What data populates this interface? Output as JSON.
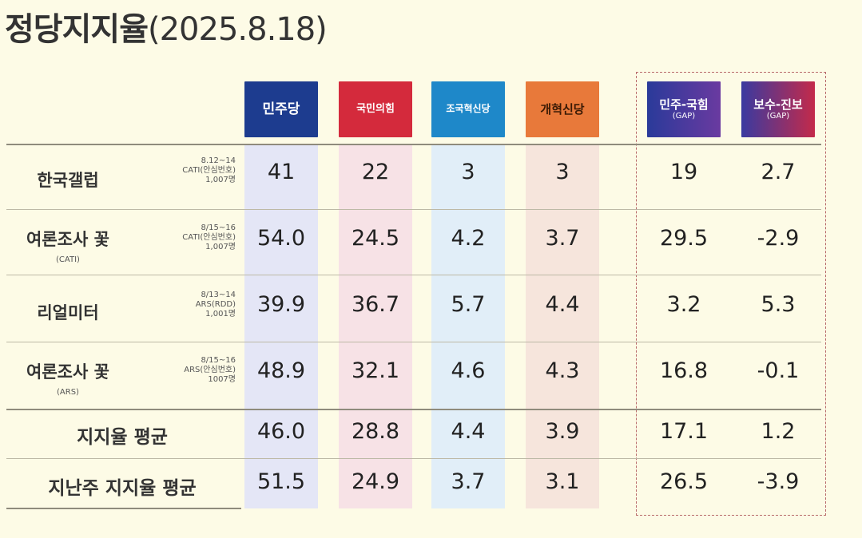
{
  "title": "정당지지율",
  "date": "(2025.8.18)",
  "colors": {
    "democratic": "#1d3c8f",
    "ppp": "#d42a3c",
    "rebuilding": "#1e88c9",
    "reform": "#e8793a",
    "gap1": "#4a3aa0",
    "gap2": "#b02a4f"
  },
  "columns": [
    {
      "label": "민주당",
      "sub": ""
    },
    {
      "label": "국민의힘",
      "sub": ""
    },
    {
      "label": "조국혁신당",
      "sub": ""
    },
    {
      "label": "개혁신당",
      "sub": ""
    },
    {
      "label": "민주-국힘",
      "sub": "(GAP)"
    },
    {
      "label": "보수-진보",
      "sub": "(GAP)"
    }
  ],
  "rows": [
    {
      "pollster": "한국갤럽",
      "pollster_sub": "",
      "meta": [
        "8.12~14",
        "CATI(안심번호)",
        "1,007명"
      ],
      "values": [
        "41",
        "22",
        "3",
        "3",
        "19",
        "2.7"
      ]
    },
    {
      "pollster": "여론조사 꽃",
      "pollster_sub": "(CATI)",
      "meta": [
        "8/15~16",
        "CATI(안심번호)",
        "1,007명"
      ],
      "values": [
        "54.0",
        "24.5",
        "4.2",
        "3.7",
        "29.5",
        "-2.9"
      ]
    },
    {
      "pollster": "리얼미터",
      "pollster_sub": "",
      "meta": [
        "8/13~14",
        "ARS(RDD)",
        "1,001명"
      ],
      "values": [
        "39.9",
        "36.7",
        "5.7",
        "4.4",
        "3.2",
        "5.3"
      ]
    },
    {
      "pollster": "여론조사 꽃",
      "pollster_sub": "(ARS)",
      "meta": [
        "8/15~16",
        "ARS(안심번호)",
        "1007명"
      ],
      "values": [
        "48.9",
        "32.1",
        "4.6",
        "4.3",
        "16.8",
        "-0.1"
      ]
    }
  ],
  "summary_rows": [
    {
      "label": "지지율 평균",
      "values": [
        "46.0",
        "28.8",
        "4.4",
        "3.9",
        "17.1",
        "1.2"
      ]
    },
    {
      "label": "지난주 지지율 평균",
      "values": [
        "51.5",
        "24.9",
        "3.7",
        "3.1",
        "26.5",
        "-3.9"
      ]
    }
  ],
  "chart_data": {
    "type": "table",
    "title": "정당지지율",
    "subtitle": "(2025.8.18)",
    "columns": [
      "민주당",
      "국민의힘",
      "조국혁신당",
      "개혁신당",
      "민주-국힘 (GAP)",
      "보수-진보 (GAP)"
    ],
    "rows": [
      {
        "name": "한국갤럽",
        "values": [
          41,
          22,
          3,
          3,
          19,
          2.7
        ]
      },
      {
        "name": "여론조사 꽃 (CATI)",
        "values": [
          54.0,
          24.5,
          4.2,
          3.7,
          29.5,
          -2.9
        ]
      },
      {
        "name": "리얼미터",
        "values": [
          39.9,
          36.7,
          5.7,
          4.4,
          3.2,
          5.3
        ]
      },
      {
        "name": "여론조사 꽃 (ARS)",
        "values": [
          48.9,
          32.1,
          4.6,
          4.3,
          16.8,
          -0.1
        ]
      },
      {
        "name": "지지율 평균",
        "values": [
          46.0,
          28.8,
          4.4,
          3.9,
          17.1,
          1.2
        ]
      },
      {
        "name": "지난주 지지율 평균",
        "values": [
          51.5,
          24.9,
          3.7,
          3.1,
          26.5,
          -3.9
        ]
      }
    ]
  }
}
